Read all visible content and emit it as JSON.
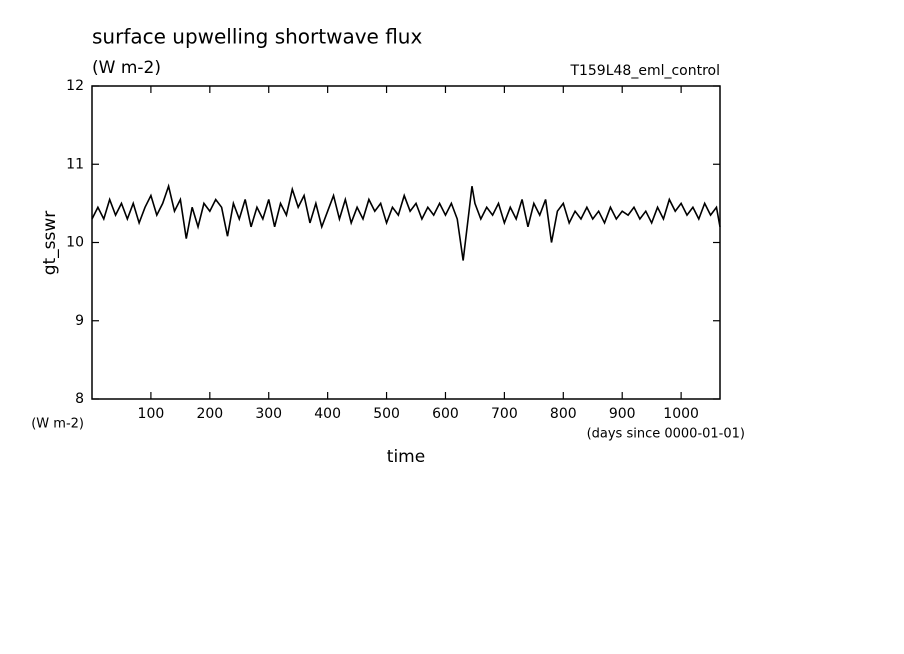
{
  "chart_data": {
    "type": "line",
    "title": "surface upwelling shortwave flux",
    "subtitle": "(W m-2)",
    "annotation": "T159L48_eml_control",
    "y_label": "gt_sswr",
    "y_units": "(W m-2)",
    "x_label": "time",
    "x_units": "(days since 0000-01-01)",
    "xlim": [
      0,
      1066
    ],
    "ylim": [
      8,
      12
    ],
    "xticks": [
      100,
      200,
      300,
      400,
      500,
      600,
      700,
      800,
      900,
      1000
    ],
    "yticks": [
      8,
      9,
      10,
      11,
      12
    ],
    "series": [
      {
        "name": "gt_sswr",
        "color": "#000000",
        "x": [
          0,
          10,
          20,
          30,
          40,
          50,
          60,
          70,
          80,
          90,
          100,
          110,
          120,
          130,
          140,
          150,
          160,
          170,
          180,
          190,
          200,
          210,
          220,
          230,
          240,
          250,
          260,
          270,
          280,
          290,
          300,
          310,
          320,
          330,
          340,
          350,
          360,
          370,
          380,
          390,
          400,
          410,
          420,
          430,
          440,
          450,
          460,
          470,
          480,
          490,
          500,
          510,
          520,
          530,
          540,
          550,
          560,
          570,
          580,
          590,
          600,
          610,
          620,
          630,
          640,
          645,
          650,
          660,
          670,
          680,
          690,
          700,
          710,
          720,
          730,
          740,
          750,
          760,
          770,
          780,
          790,
          800,
          810,
          820,
          830,
          840,
          850,
          860,
          870,
          880,
          890,
          900,
          910,
          920,
          930,
          940,
          950,
          960,
          970,
          980,
          990,
          1000,
          1010,
          1020,
          1030,
          1040,
          1050,
          1060,
          1066
        ],
        "values": [
          10.3,
          10.45,
          10.3,
          10.55,
          10.35,
          10.5,
          10.3,
          10.5,
          10.25,
          10.45,
          10.6,
          10.35,
          10.5,
          10.72,
          10.4,
          10.55,
          10.05,
          10.45,
          10.2,
          10.5,
          10.4,
          10.55,
          10.45,
          10.08,
          10.5,
          10.3,
          10.55,
          10.2,
          10.45,
          10.3,
          10.55,
          10.2,
          10.5,
          10.35,
          10.68,
          10.45,
          10.6,
          10.25,
          10.5,
          10.2,
          10.4,
          10.6,
          10.3,
          10.55,
          10.25,
          10.45,
          10.3,
          10.55,
          10.4,
          10.5,
          10.25,
          10.45,
          10.35,
          10.6,
          10.4,
          10.5,
          10.3,
          10.45,
          10.35,
          10.5,
          10.35,
          10.5,
          10.3,
          9.77,
          10.4,
          10.72,
          10.5,
          10.3,
          10.45,
          10.35,
          10.5,
          10.25,
          10.45,
          10.3,
          10.55,
          10.2,
          10.5,
          10.35,
          10.55,
          10.0,
          10.4,
          10.5,
          10.25,
          10.4,
          10.3,
          10.45,
          10.3,
          10.4,
          10.25,
          10.45,
          10.3,
          10.4,
          10.35,
          10.45,
          10.3,
          10.4,
          10.25,
          10.45,
          10.3,
          10.55,
          10.4,
          10.5,
          10.35,
          10.45,
          10.3,
          10.5,
          10.35,
          10.45,
          10.2
        ]
      }
    ]
  }
}
